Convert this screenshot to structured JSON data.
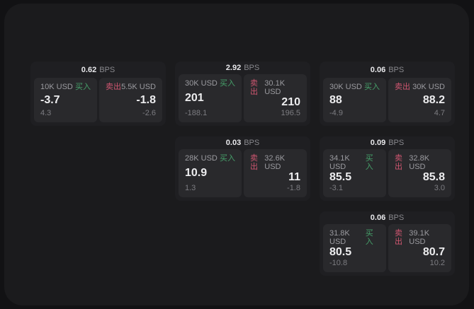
{
  "labels": {
    "bps_unit": "BPS",
    "buy": "买入",
    "sell": "卖出"
  },
  "colors": {
    "buy": "#46a06a",
    "sell": "#cf5670",
    "surface": "#1b1b1d",
    "card": "#1f1f22",
    "panel": "#29292c"
  },
  "cards": [
    {
      "row": 1,
      "col": 1,
      "bps": "0.62",
      "buy": {
        "amount": "10K USD",
        "side": "买入",
        "value": "-3.7",
        "delta": "4.3"
      },
      "sell": {
        "amount": "5.5K USD",
        "side": "卖出",
        "value": "-1.8",
        "delta": "-2.6"
      }
    },
    {
      "row": 1,
      "col": 2,
      "bps": "2.92",
      "buy": {
        "amount": "30K USD",
        "side": "买入",
        "value": "201",
        "delta": "-188.1"
      },
      "sell": {
        "amount": "30.1K USD",
        "side": "卖出",
        "value": "210",
        "delta": "196.5"
      }
    },
    {
      "row": 1,
      "col": 3,
      "bps": "0.06",
      "buy": {
        "amount": "30K USD",
        "side": "买入",
        "value": "88",
        "delta": "-4.9"
      },
      "sell": {
        "amount": "30K USD",
        "side": "卖出",
        "value": "88.2",
        "delta": "4.7"
      }
    },
    {
      "row": 2,
      "col": 2,
      "bps": "0.03",
      "buy": {
        "amount": "28K USD",
        "side": "买入",
        "value": "10.9",
        "delta": "1.3"
      },
      "sell": {
        "amount": "32.6K USD",
        "side": "卖出",
        "value": "11",
        "delta": "-1.8"
      }
    },
    {
      "row": 2,
      "col": 3,
      "bps": "0.09",
      "buy": {
        "amount": "34.1K USD",
        "side": "买入",
        "value": "85.5",
        "delta": "-3.1"
      },
      "sell": {
        "amount": "32.8K USD",
        "side": "卖出",
        "value": "85.8",
        "delta": "3.0"
      }
    },
    {
      "row": 3,
      "col": 3,
      "bps": "0.06",
      "buy": {
        "amount": "31.8K USD",
        "side": "买入",
        "value": "80.5",
        "delta": "-10.8"
      },
      "sell": {
        "amount": "39.1K USD",
        "side": "卖出",
        "value": "80.7",
        "delta": "10.2"
      }
    }
  ]
}
